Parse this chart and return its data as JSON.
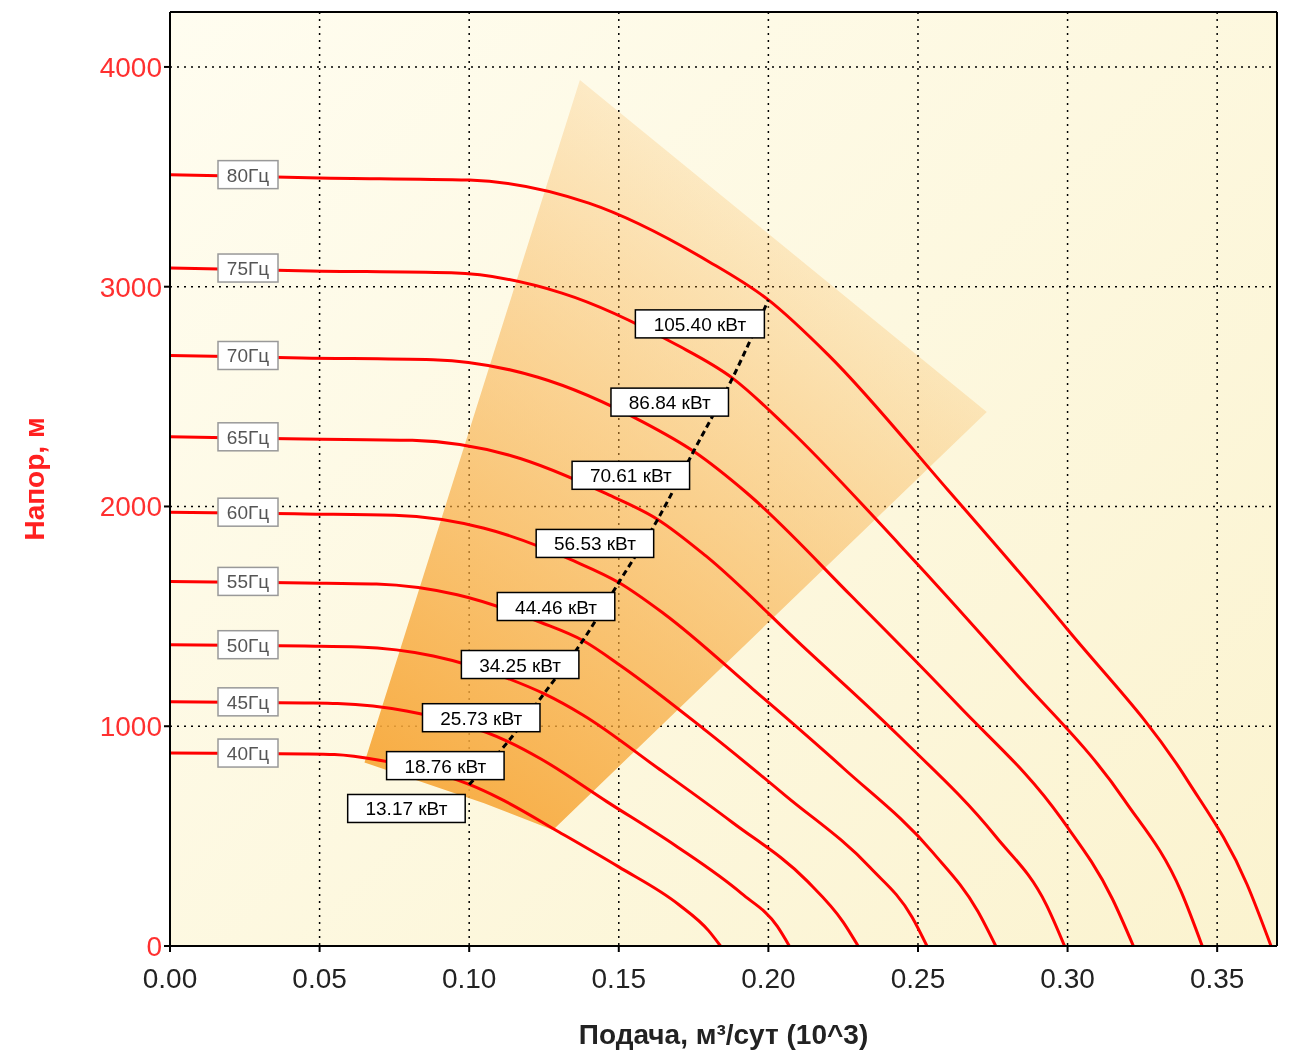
{
  "chart_data": {
    "type": "line",
    "xlabel": "Подача, м³/сут (10^3)",
    "ylabel": "Напор, м",
    "xlim": [
      0,
      0.37
    ],
    "ylim": [
      0,
      4250
    ],
    "xticks": [
      {
        "value": 0,
        "label": "0.00"
      },
      {
        "value": 0.05,
        "label": "0.05"
      },
      {
        "value": 0.1,
        "label": "0.10"
      },
      {
        "value": 0.15,
        "label": "0.15"
      },
      {
        "value": 0.2,
        "label": "0.20"
      },
      {
        "value": 0.25,
        "label": "0.25"
      },
      {
        "value": 0.3,
        "label": "0.30"
      },
      {
        "value": 0.35,
        "label": "0.35"
      }
    ],
    "yticks": [
      0,
      1000,
      2000,
      3000,
      4000
    ],
    "grid": true,
    "series": [
      {
        "type": "area",
        "color": "#f7a83a",
        "x": [
          0.065,
          0.137,
          0.273,
          0.128,
          0.105
        ],
        "values": [
          835,
          3941,
          2430,
          528,
          650
        ]
      },
      {
        "name": "80Гц",
        "color": "#ff0000",
        "x": [
          0,
          0.05,
          0.1,
          0.14,
          0.18,
          0.2,
          0.22,
          0.26,
          0.3,
          0.34,
          0.36,
          0.368
        ],
        "values": [
          3510,
          3495,
          3485,
          3380,
          3115,
          2940,
          2690,
          2075,
          1440,
          755,
          280,
          0
        ]
      },
      {
        "name": "75Гц",
        "color": "#ff0000",
        "x": [
          0,
          0.047,
          0.094,
          0.131,
          0.169,
          0.188,
          0.206,
          0.244,
          0.281,
          0.319,
          0.338,
          0.345
        ],
        "values": [
          3085,
          3072,
          3063,
          2971,
          2738,
          2584,
          2364,
          1824,
          1266,
          664,
          246,
          0
        ]
      },
      {
        "name": "70Гц",
        "color": "#ff0000",
        "x": [
          0,
          0.044,
          0.088,
          0.123,
          0.158,
          0.175,
          0.193,
          0.228,
          0.263,
          0.298,
          0.315,
          0.322
        ],
        "values": [
          2687,
          2676,
          2668,
          2588,
          2385,
          2251,
          2059,
          1589,
          1102,
          578,
          214,
          0
        ]
      },
      {
        "name": "65Гц",
        "color": "#ff0000",
        "x": [
          0,
          0.045,
          0.081,
          0.114,
          0.146,
          0.163,
          0.179,
          0.211,
          0.244,
          0.276,
          0.293,
          0.299
        ],
        "values": [
          2317,
          2307,
          2301,
          2231,
          2057,
          1941,
          1776,
          1370,
          951,
          498,
          185,
          0
        ]
      },
      {
        "name": "60Гц",
        "color": "#ff0000",
        "x": [
          0,
          0.045,
          0.075,
          0.105,
          0.135,
          0.15,
          0.165,
          0.195,
          0.225,
          0.255,
          0.27,
          0.276
        ],
        "values": [
          1974,
          1966,
          1960,
          1901,
          1752,
          1654,
          1513,
          1167,
          810,
          425,
          158,
          0
        ]
      },
      {
        "name": "55Гц",
        "color": "#ff0000",
        "x": [
          0,
          0.045,
          0.069,
          0.096,
          0.124,
          0.138,
          0.151,
          0.179,
          0.206,
          0.234,
          0.248,
          0.253
        ],
        "values": [
          1659,
          1652,
          1647,
          1598,
          1472,
          1390,
          1272,
          981,
          681,
          357,
          132,
          0
        ]
      },
      {
        "name": "50Гц",
        "color": "#ff0000",
        "x": [
          0,
          0.045,
          0.063,
          0.088,
          0.113,
          0.125,
          0.138,
          0.163,
          0.188,
          0.213,
          0.225,
          0.23
        ],
        "values": [
          1371,
          1365,
          1361,
          1320,
          1217,
          1148,
          1051,
          810,
          562,
          295,
          109,
          0
        ]
      },
      {
        "name": "45Гц",
        "color": "#ff0000",
        "x": [
          0,
          0.045,
          0.056,
          0.079,
          0.113,
          0.124,
          0.146,
          0.169,
          0.191,
          0.203,
          0.207
        ],
        "values": [
          1111,
          1106,
          1103,
          1069,
          930,
          851,
          657,
          456,
          239,
          89,
          0
        ]
      },
      {
        "name": "40Гц",
        "color": "#ff0000",
        "x": [
          0,
          0.045,
          0.055,
          0.07,
          0.1,
          0.11,
          0.13,
          0.15,
          0.17,
          0.18,
          0.184
        ],
        "values": [
          878,
          874,
          871,
          845,
          735,
          673,
          519,
          360,
          189,
          70,
          0
        ]
      },
      {
        "type": "line",
        "color": "#000000",
        "line_style": "dashed",
        "x": [
          0.1,
          0.113,
          0.125,
          0.138,
          0.15,
          0.163,
          0.175,
          0.188,
          0.2
        ],
        "values": [
          735,
          930,
          1148,
          1390,
          1654,
          1941,
          2251,
          2584,
          2940
        ]
      }
    ],
    "annotations": [
      {
        "text": "13.17 кВт",
        "x": 0.1,
        "y": 735
      },
      {
        "text": "18.76 кВт",
        "x": 0.113,
        "y": 930
      },
      {
        "text": "25.73 кВт",
        "x": 0.125,
        "y": 1148
      },
      {
        "text": "34.25 кВт",
        "x": 0.138,
        "y": 1390
      },
      {
        "text": "44.46 кВт",
        "x": 0.15,
        "y": 1654
      },
      {
        "text": "56.53 кВт",
        "x": 0.163,
        "y": 1941
      },
      {
        "text": "70.61 кВт",
        "x": 0.175,
        "y": 2251
      },
      {
        "text": "86.84 кВт",
        "x": 0.188,
        "y": 2584
      },
      {
        "text": "105.40 кВт",
        "x": 0.2,
        "y": 2940
      }
    ]
  }
}
